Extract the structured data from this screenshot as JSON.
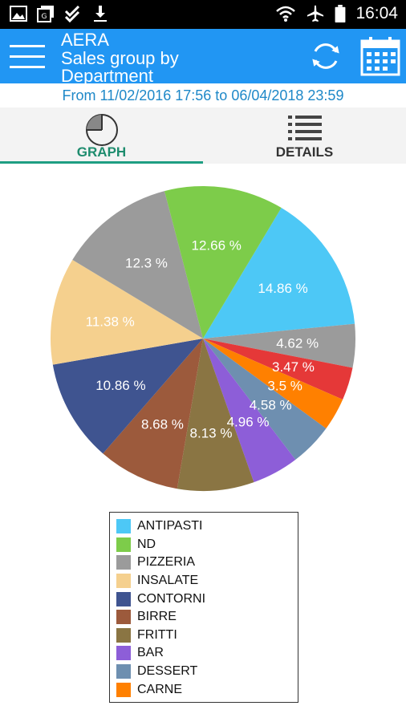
{
  "status_bar": {
    "time": "16:04",
    "icons": [
      "image-icon",
      "gallery-icon",
      "check-icon",
      "download-icon",
      "wifi-icon",
      "airplane-icon",
      "battery-icon"
    ]
  },
  "app_bar": {
    "app_name": "AERA",
    "title": "Sales group by Department",
    "background_color": "#2196f3",
    "icons": [
      "menu-icon",
      "refresh-icon",
      "calendar-icon"
    ]
  },
  "date_range": "From 11/02/2016 17:56 to 06/04/2018 23:59",
  "tabs": [
    {
      "label": "GRAPH",
      "icon": "pie-chart-icon",
      "selected": true
    },
    {
      "label": "DETAILS",
      "icon": "list-icon",
      "selected": false
    }
  ],
  "chart_data": {
    "type": "pie",
    "title": "",
    "slices": [
      {
        "label": "ANTIPASTI",
        "value": 14.86,
        "text": "14.86 %",
        "color": "#4dc8f6"
      },
      {
        "label": "",
        "value": 4.62,
        "text": "4.62 %",
        "color": "#9b9b9b"
      },
      {
        "label": "",
        "value": 3.47,
        "text": "3.47 %",
        "color": "#e53838"
      },
      {
        "label": "CARNE",
        "value": 3.5,
        "text": "3.5 %",
        "color": "#ff8000"
      },
      {
        "label": "DESSERT",
        "value": 4.58,
        "text": "4.58 %",
        "color": "#6e8fb0"
      },
      {
        "label": "BAR",
        "value": 4.96,
        "text": "4.96 %",
        "color": "#8d5ed8"
      },
      {
        "label": "FRITTI",
        "value": 8.13,
        "text": "8.13 %",
        "color": "#8a7543"
      },
      {
        "label": "BIRRE",
        "value": 8.68,
        "text": "8.68 %",
        "color": "#9c5a3c"
      },
      {
        "label": "CONTORNI",
        "value": 10.86,
        "text": "10.86 %",
        "color": "#3f5490"
      },
      {
        "label": "INSALATE",
        "value": 11.38,
        "text": "11.38 %",
        "color": "#f5d08e"
      },
      {
        "label": "PIZZERIA",
        "value": 12.3,
        "text": "12.3 %",
        "color": "#9b9b9b"
      },
      {
        "label": "ND",
        "value": 12.66,
        "text": "12.66 %",
        "color": "#7dcc4a"
      }
    ],
    "legend": [
      {
        "label": "ANTIPASTI",
        "color": "#4dc8f6"
      },
      {
        "label": "ND",
        "color": "#7dcc4a"
      },
      {
        "label": "PIZZERIA",
        "color": "#9b9b9b"
      },
      {
        "label": "INSALATE",
        "color": "#f5d08e"
      },
      {
        "label": "CONTORNI",
        "color": "#3f5490"
      },
      {
        "label": "BIRRE",
        "color": "#9c5a3c"
      },
      {
        "label": "FRITTI",
        "color": "#8a7543"
      },
      {
        "label": "BAR",
        "color": "#8d5ed8"
      },
      {
        "label": "DESSERT",
        "color": "#6e8fb0"
      },
      {
        "label": "CARNE",
        "color": "#ff8000"
      }
    ],
    "legend_placement": "bottom"
  }
}
